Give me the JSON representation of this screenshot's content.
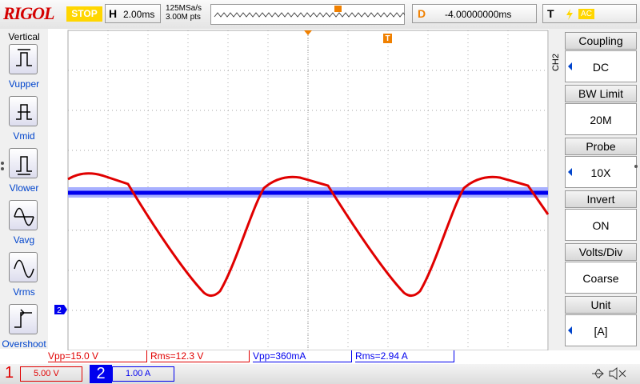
{
  "header": {
    "logo": "RIGOL",
    "status": "STOP",
    "timebase_label": "H",
    "timebase": "2.00ms",
    "sample_rate": "125MSa/s",
    "memory_depth": "3.00M pts",
    "delay_label": "D",
    "delay": "-4.00000000ms",
    "trigger_label": "T",
    "trigger_coupling": "AC"
  },
  "left_menu": {
    "title": "Vertical",
    "items": [
      "Vupper",
      "Vmid",
      "Vlower",
      "Vavg",
      "Vrms",
      "Overshoot"
    ]
  },
  "right_menu": {
    "channel": "CH2",
    "items": [
      {
        "label": "Coupling",
        "value": "DC"
      },
      {
        "label": "BW Limit",
        "value": "20M"
      },
      {
        "label": "Probe",
        "value": "10X"
      },
      {
        "label": "Invert",
        "value": "ON"
      },
      {
        "label": "Volts/Div",
        "value": "Coarse"
      },
      {
        "label": "Unit",
        "value": "[A]"
      }
    ]
  },
  "markers": {
    "trigger": "T",
    "ch2": "2"
  },
  "measurements": [
    "Vpp=15.0 V",
    "Rms=12.3 V",
    "Vpp=360mA",
    "Rms=2.94 A"
  ],
  "channels": [
    {
      "number": "1",
      "scale": "5.00 V"
    },
    {
      "number": "2",
      "scale": "1.00 A"
    }
  ]
}
